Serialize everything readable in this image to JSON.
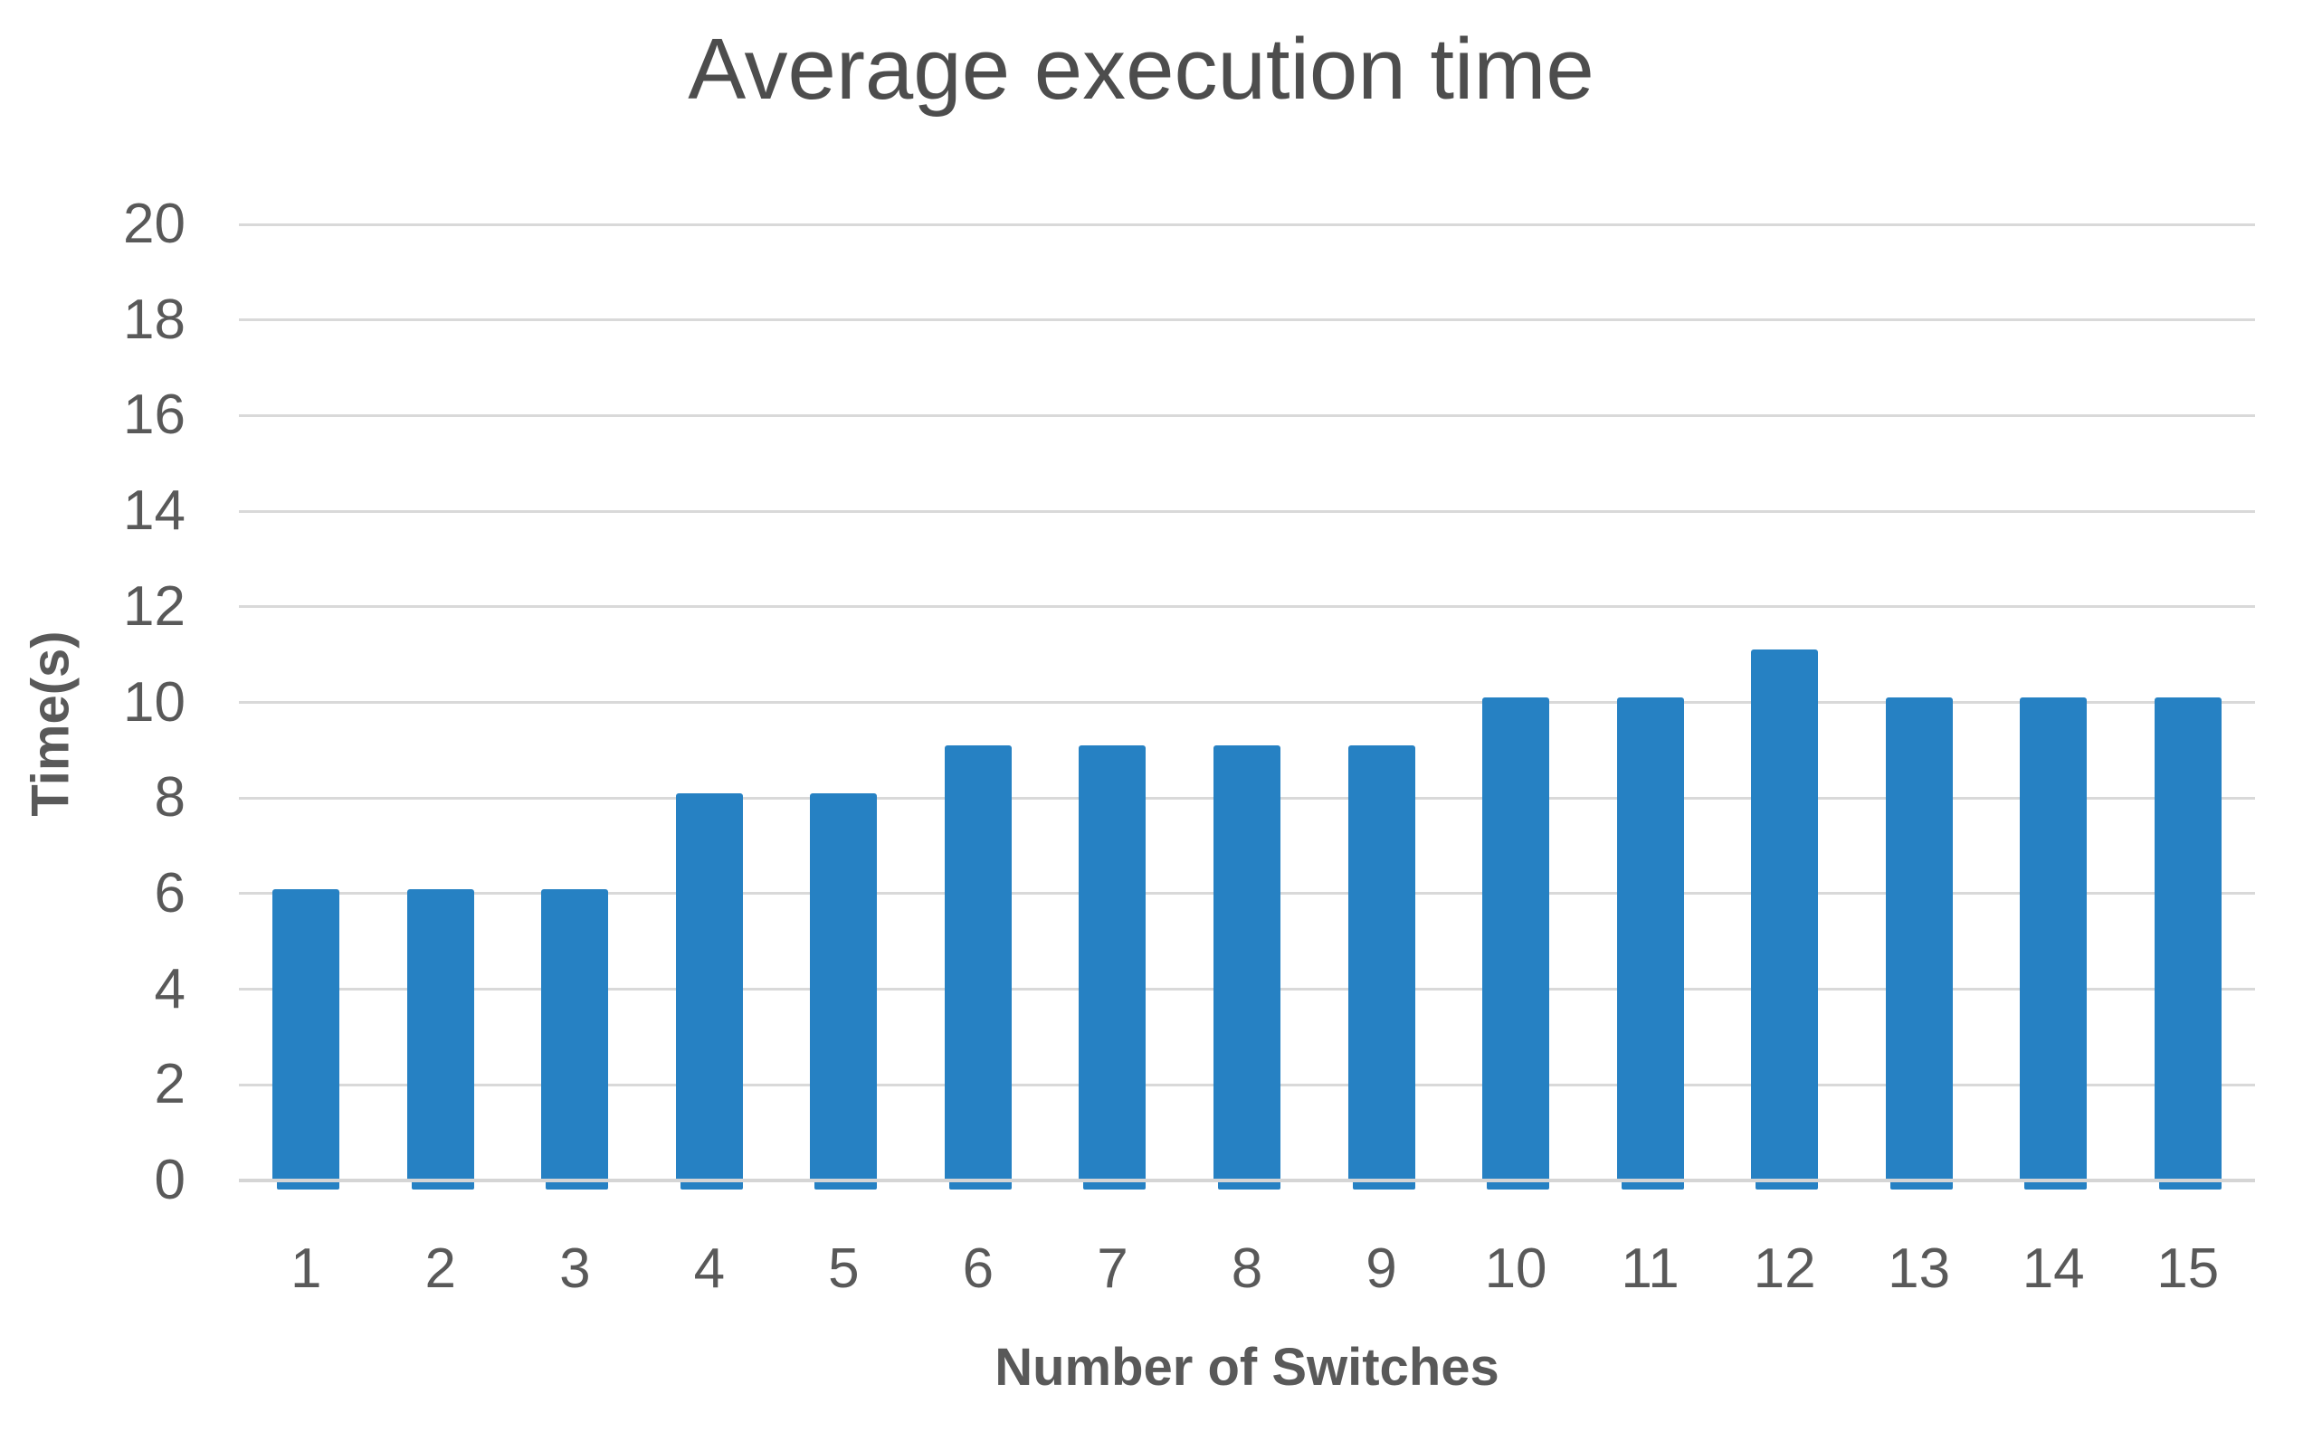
{
  "chart_data": {
    "type": "bar",
    "title": "Average execution time",
    "xlabel": "Number of Switches",
    "ylabel": "Time(s)",
    "categories": [
      "1",
      "2",
      "3",
      "4",
      "5",
      "6",
      "7",
      "8",
      "9",
      "10",
      "11",
      "12",
      "13",
      "14",
      "15"
    ],
    "values": [
      6.1,
      6.1,
      6.1,
      8.1,
      8.1,
      9.1,
      9.1,
      9.1,
      9.1,
      10.1,
      10.1,
      11.1,
      10.1,
      10.1,
      10.1
    ],
    "ylim": [
      0,
      20
    ],
    "ytick_step": 2,
    "yticks": [
      "0",
      "2",
      "4",
      "6",
      "8",
      "10",
      "12",
      "14",
      "16",
      "18",
      "20"
    ],
    "grid": "horizontal",
    "legend": "none",
    "bar_color": "#2681c3",
    "gridline_color": "#d9d9d9",
    "axis_line_color": "#d5d5d5",
    "text_color": "#595959",
    "title_color": "#4d4d4d"
  }
}
